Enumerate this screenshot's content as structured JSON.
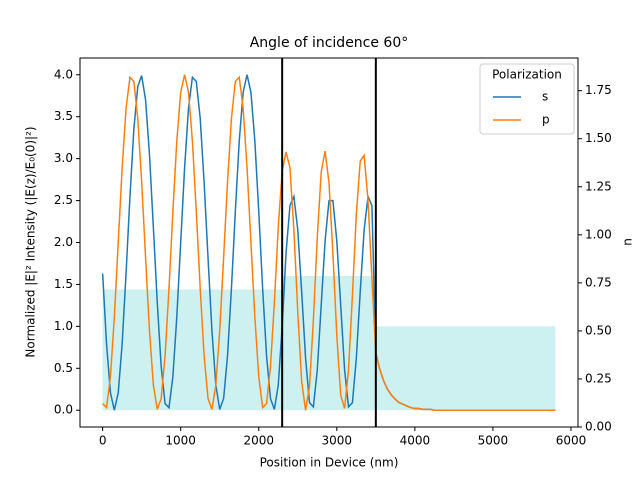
{
  "chart_data": {
    "type": "line",
    "title": "Angle of incidence 60°",
    "x_label": "Position in Device (nm)",
    "y_label": "Normalized |E|² Intensity (|E(z)/E₀(0)|²)",
    "y2_label": "n",
    "legend_title": "Polarization",
    "legend_position": "upper right",
    "xlim": [
      -290,
      6090
    ],
    "ylim": [
      -0.2,
      4.2
    ],
    "y2lim": [
      0,
      1.92
    ],
    "xticks": [
      0,
      1000,
      2000,
      3000,
      4000,
      5000,
      6000
    ],
    "yticks": [
      {
        "value": 0,
        "label": "0.0"
      },
      {
        "value": 0.5,
        "label": "0.5"
      },
      {
        "value": 1,
        "label": "1.0"
      },
      {
        "value": 1.5,
        "label": "1.5"
      },
      {
        "value": 2,
        "label": "2.0"
      },
      {
        "value": 2.5,
        "label": "2.5"
      },
      {
        "value": 3,
        "label": "3.0"
      },
      {
        "value": 3.5,
        "label": "3.5"
      },
      {
        "value": 4,
        "label": "4.0"
      }
    ],
    "y2ticks": [
      {
        "value": 0,
        "label": "0.00"
      },
      {
        "value": 0.25,
        "label": "0.25"
      },
      {
        "value": 0.5,
        "label": "0.50"
      },
      {
        "value": 0.75,
        "label": "0.75"
      },
      {
        "value": 1,
        "label": "1.00"
      },
      {
        "value": 1.25,
        "label": "1.25"
      },
      {
        "value": 1.5,
        "label": "1.50"
      },
      {
        "value": 1.75,
        "label": "1.75"
      }
    ],
    "index_fill": {
      "edges": [
        0,
        2300,
        3500,
        5800
      ],
      "values": [
        1.44,
        1.6,
        1.0
      ],
      "color": "#cdf1f0"
    },
    "interfaces": {
      "x": [
        2300,
        3500
      ],
      "color": "#000000"
    },
    "x": [
      0,
      50,
      100,
      150,
      200,
      250,
      300,
      350,
      400,
      450,
      500,
      550,
      600,
      650,
      700,
      750,
      800,
      850,
      900,
      950,
      1000,
      1050,
      1100,
      1150,
      1200,
      1250,
      1300,
      1350,
      1400,
      1450,
      1500,
      1550,
      1600,
      1650,
      1700,
      1750,
      1800,
      1850,
      1900,
      1950,
      2000,
      2050,
      2100,
      2150,
      2200,
      2250,
      2300,
      2350,
      2400,
      2450,
      2500,
      2550,
      2600,
      2650,
      2700,
      2750,
      2800,
      2850,
      2900,
      2950,
      3000,
      3050,
      3100,
      3150,
      3200,
      3250,
      3300,
      3350,
      3400,
      3450,
      3500,
      3550,
      3600,
      3650,
      3700,
      3750,
      3800,
      3850,
      3900,
      3950,
      4000,
      4050,
      4100,
      4150,
      4200,
      4250,
      4500,
      5000,
      5500,
      5800
    ],
    "series": [
      {
        "name": "s",
        "color": "#1f77b4",
        "values": [
          1.63,
          0.79,
          0.21,
          0,
          0.21,
          0.79,
          1.63,
          2.55,
          3.35,
          3.86,
          3.99,
          3.7,
          3.05,
          2.18,
          1.28,
          0.52,
          0.08,
          0.03,
          0.4,
          1.11,
          2.0,
          2.89,
          3.6,
          3.97,
          3.92,
          3.48,
          2.72,
          1.82,
          0.95,
          0.3,
          0.01,
          0.14,
          0.65,
          1.45,
          2.37,
          3.21,
          3.79,
          4.0,
          3.79,
          3.21,
          2.37,
          1.45,
          0.65,
          0.14,
          0.01,
          0.3,
          1.0,
          1.88,
          2.44,
          2.55,
          2.15,
          1.41,
          0.62,
          0.09,
          0.04,
          0.48,
          1.25,
          2.02,
          2.5,
          2.5,
          2.02,
          1.25,
          0.48,
          0.04,
          0.09,
          0.62,
          1.41,
          2.15,
          2.55,
          2.44,
          0.68,
          0.49,
          0.35,
          0.25,
          0.18,
          0.13,
          0.09,
          0.07,
          0.05,
          0.03,
          0.02,
          0.02,
          0.01,
          0.01,
          0.01,
          0,
          0,
          0,
          0,
          0
        ]
      },
      {
        "name": "p",
        "color": "#ff7f0e",
        "values": [
          0.08,
          0.03,
          0.4,
          1.11,
          2.0,
          2.89,
          3.6,
          3.97,
          3.92,
          3.48,
          2.72,
          1.82,
          0.95,
          0.3,
          0.01,
          0.14,
          0.65,
          1.45,
          2.37,
          3.21,
          3.79,
          4.0,
          3.79,
          3.21,
          2.37,
          1.45,
          0.65,
          0.14,
          0.01,
          0.3,
          0.95,
          1.82,
          2.72,
          3.48,
          3.92,
          3.97,
          3.6,
          2.89,
          2.0,
          1.11,
          0.4,
          0.03,
          0.08,
          0.52,
          1.28,
          2.18,
          2.85,
          3.08,
          2.89,
          2.15,
          1.17,
          0.34,
          0.0,
          0.28,
          1.08,
          2.06,
          2.84,
          3.09,
          2.71,
          1.87,
          0.89,
          0.18,
          0.02,
          0.48,
          1.37,
          2.33,
          2.97,
          3.04,
          2.5,
          1.57,
          0.68,
          0.49,
          0.35,
          0.25,
          0.18,
          0.13,
          0.09,
          0.07,
          0.05,
          0.03,
          0.02,
          0.02,
          0.01,
          0.01,
          0.01,
          0,
          0,
          0,
          0,
          0
        ]
      }
    ]
  }
}
